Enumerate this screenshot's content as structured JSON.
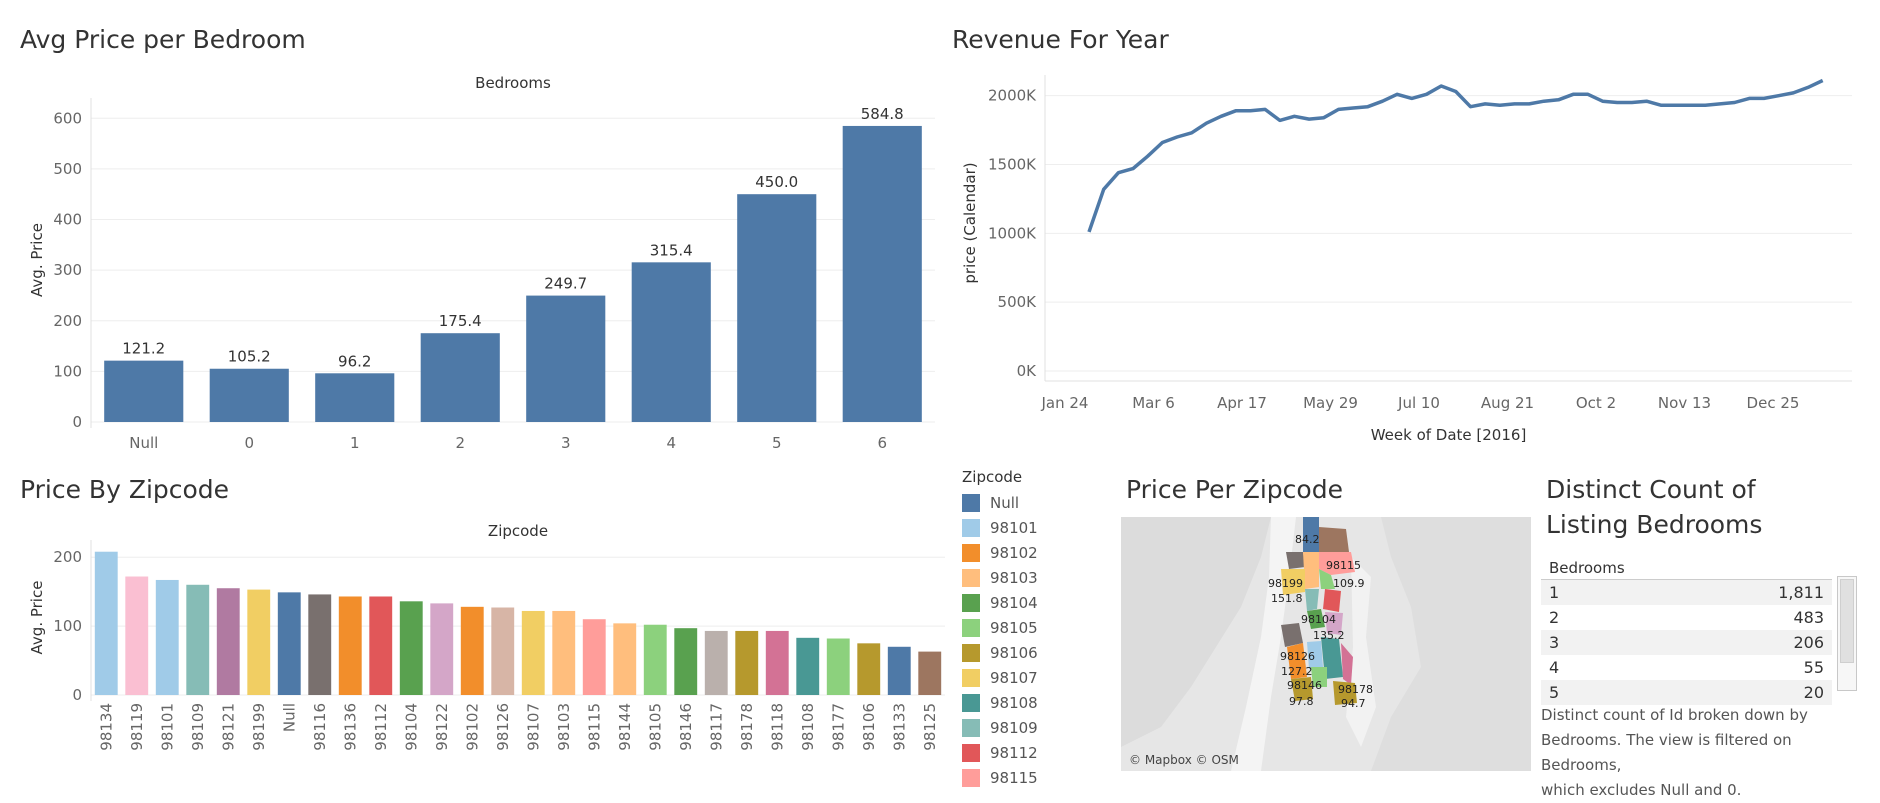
{
  "panels": {
    "bedroom_title": "Avg Price per Bedroom",
    "revenue_title": "Revenue For Year",
    "zipcode_title": "Price By Zipcode",
    "map_title": "Price Per Zipcode",
    "count_title_line1": "Distinct Count of",
    "count_title_line2": "Listing Bedrooms"
  },
  "chart_data": [
    {
      "type": "bar",
      "title": "Avg Price per Bedroom",
      "header": "Bedrooms",
      "categories": [
        "Null",
        "0",
        "1",
        "2",
        "3",
        "4",
        "5",
        "6"
      ],
      "values": [
        121.2,
        105.2,
        96.2,
        175.4,
        249.7,
        315.4,
        450.0,
        584.8
      ],
      "value_labels": [
        "121.2",
        "105.2",
        "96.2",
        "175.4",
        "249.7",
        "315.4",
        "450.0",
        "584.8"
      ],
      "ylabel": "Avg. Price",
      "ylim": [
        0,
        640
      ],
      "yticks": [
        0,
        100,
        200,
        300,
        400,
        500,
        600
      ],
      "color": "#4e79a7",
      "grid": true
    },
    {
      "type": "line",
      "title": "Revenue For Year",
      "xlabel": "Week of Date [2016]",
      "ylabel": "price (Calendar)",
      "x_ticks": [
        "Jan 24",
        "Mar 6",
        "Apr 17",
        "May 29",
        "Jul 10",
        "Aug 21",
        "Oct 2",
        "Nov 13",
        "Dec 25"
      ],
      "x": [
        3,
        4,
        5,
        6,
        7,
        8,
        9,
        10,
        11,
        12,
        13,
        14,
        15,
        16,
        17,
        18,
        19,
        20,
        21,
        22,
        23,
        24,
        25,
        26,
        27,
        28,
        29,
        30,
        31,
        32,
        33,
        34,
        35,
        36,
        37,
        38,
        39,
        40,
        41,
        42,
        43,
        44,
        45,
        46,
        47,
        48,
        49,
        50,
        51,
        52,
        53
      ],
      "values": [
        1010000,
        1320000,
        1440000,
        1470000,
        1560000,
        1660000,
        1700000,
        1730000,
        1800000,
        1850000,
        1890000,
        1890000,
        1900000,
        1820000,
        1850000,
        1830000,
        1840000,
        1900000,
        1910000,
        1920000,
        1960000,
        2010000,
        1980000,
        2010000,
        2070000,
        2030000,
        1920000,
        1940000,
        1930000,
        1940000,
        1940000,
        1960000,
        1970000,
        2010000,
        2010000,
        1960000,
        1950000,
        1950000,
        1960000,
        1930000,
        1930000,
        1930000,
        1930000,
        1940000,
        1950000,
        1980000,
        1980000,
        2000000,
        2020000,
        2060000,
        2110000
      ],
      "yticks": [
        0,
        500000,
        1000000,
        1500000,
        2000000
      ],
      "ytick_labels": [
        "0K",
        "500K",
        "1000K",
        "1500K",
        "2000K"
      ],
      "ylim": [
        0,
        2150000
      ],
      "color": "#4e79a7",
      "grid": true
    },
    {
      "type": "bar",
      "title": "Price By Zipcode",
      "header": "Zipcode",
      "categories": [
        "98134",
        "98119",
        "98101",
        "98109",
        "98121",
        "98199",
        "Null",
        "98116",
        "98136",
        "98112",
        "98104",
        "98122",
        "98102",
        "98126",
        "98107",
        "98103",
        "98115",
        "98144",
        "98105",
        "98146",
        "98117",
        "98178",
        "98118",
        "98108",
        "98177",
        "98106",
        "98133",
        "98125"
      ],
      "values": [
        208,
        172,
        167,
        160,
        155,
        153,
        149,
        146,
        143,
        143,
        136,
        133,
        128,
        127,
        122,
        122,
        110,
        104,
        102,
        97,
        93,
        93,
        93,
        83,
        82,
        75,
        70,
        63
      ],
      "colors": [
        "#a0cbe8",
        "#fabfd2",
        "#a0cbe8",
        "#86bcb6",
        "#b07aa1",
        "#f1ce63",
        "#4e79a7",
        "#79706e",
        "#f28e2b",
        "#e15759",
        "#59a14f",
        "#d4a6c8",
        "#f28e2b",
        "#d7b5a6",
        "#f1ce63",
        "#ffbe7d",
        "#ff9d9a",
        "#ffbe7d",
        "#8cd17d",
        "#59a14f",
        "#bab0ac",
        "#b6992d",
        "#d37295",
        "#499894",
        "#8cd17d",
        "#b6992d",
        "#4e79a7",
        "#9d7660"
      ],
      "ylabel": "Avg. Price",
      "ylim": [
        0,
        225
      ],
      "yticks": [
        0,
        100,
        200
      ],
      "grid": true
    },
    {
      "type": "table",
      "title": "Distinct Count of Listing Bedrooms",
      "column": "Bedrooms",
      "rows": [
        [
          "1",
          "1,811"
        ],
        [
          "2",
          "483"
        ],
        [
          "3",
          "206"
        ],
        [
          "4",
          "55"
        ],
        [
          "5",
          "20"
        ]
      ]
    }
  ],
  "legend": {
    "title": "Zipcode",
    "items": [
      {
        "label": "Null",
        "color": "#4e79a7"
      },
      {
        "label": "98101",
        "color": "#a0cbe8"
      },
      {
        "label": "98102",
        "color": "#f28e2b"
      },
      {
        "label": "98103",
        "color": "#ffbe7d"
      },
      {
        "label": "98104",
        "color": "#59a14f"
      },
      {
        "label": "98105",
        "color": "#8cd17d"
      },
      {
        "label": "98106",
        "color": "#b6992d"
      },
      {
        "label": "98107",
        "color": "#f1ce63"
      },
      {
        "label": "98108",
        "color": "#499894"
      },
      {
        "label": "98109",
        "color": "#86bcb6"
      },
      {
        "label": "98112",
        "color": "#e15759"
      },
      {
        "label": "98115",
        "color": "#ff9d9a"
      }
    ]
  },
  "map": {
    "attribution": "© Mapbox © OSM",
    "labels": [
      {
        "text": "84.2"
      },
      {
        "text": "98115"
      },
      {
        "text": "98199"
      },
      {
        "text": "109.9"
      },
      {
        "text": "151.8"
      },
      {
        "text": "98104"
      },
      {
        "text": "135.2"
      },
      {
        "text": "98126"
      },
      {
        "text": "127.2"
      },
      {
        "text": "98146"
      },
      {
        "text": "98178"
      },
      {
        "text": "97.8"
      },
      {
        "text": "94.7"
      }
    ]
  },
  "caption": {
    "line1": "Distinct count of Id broken down by",
    "line2": "Bedrooms. The view is filtered on Bedrooms,",
    "line3": "which excludes Null and 0."
  }
}
